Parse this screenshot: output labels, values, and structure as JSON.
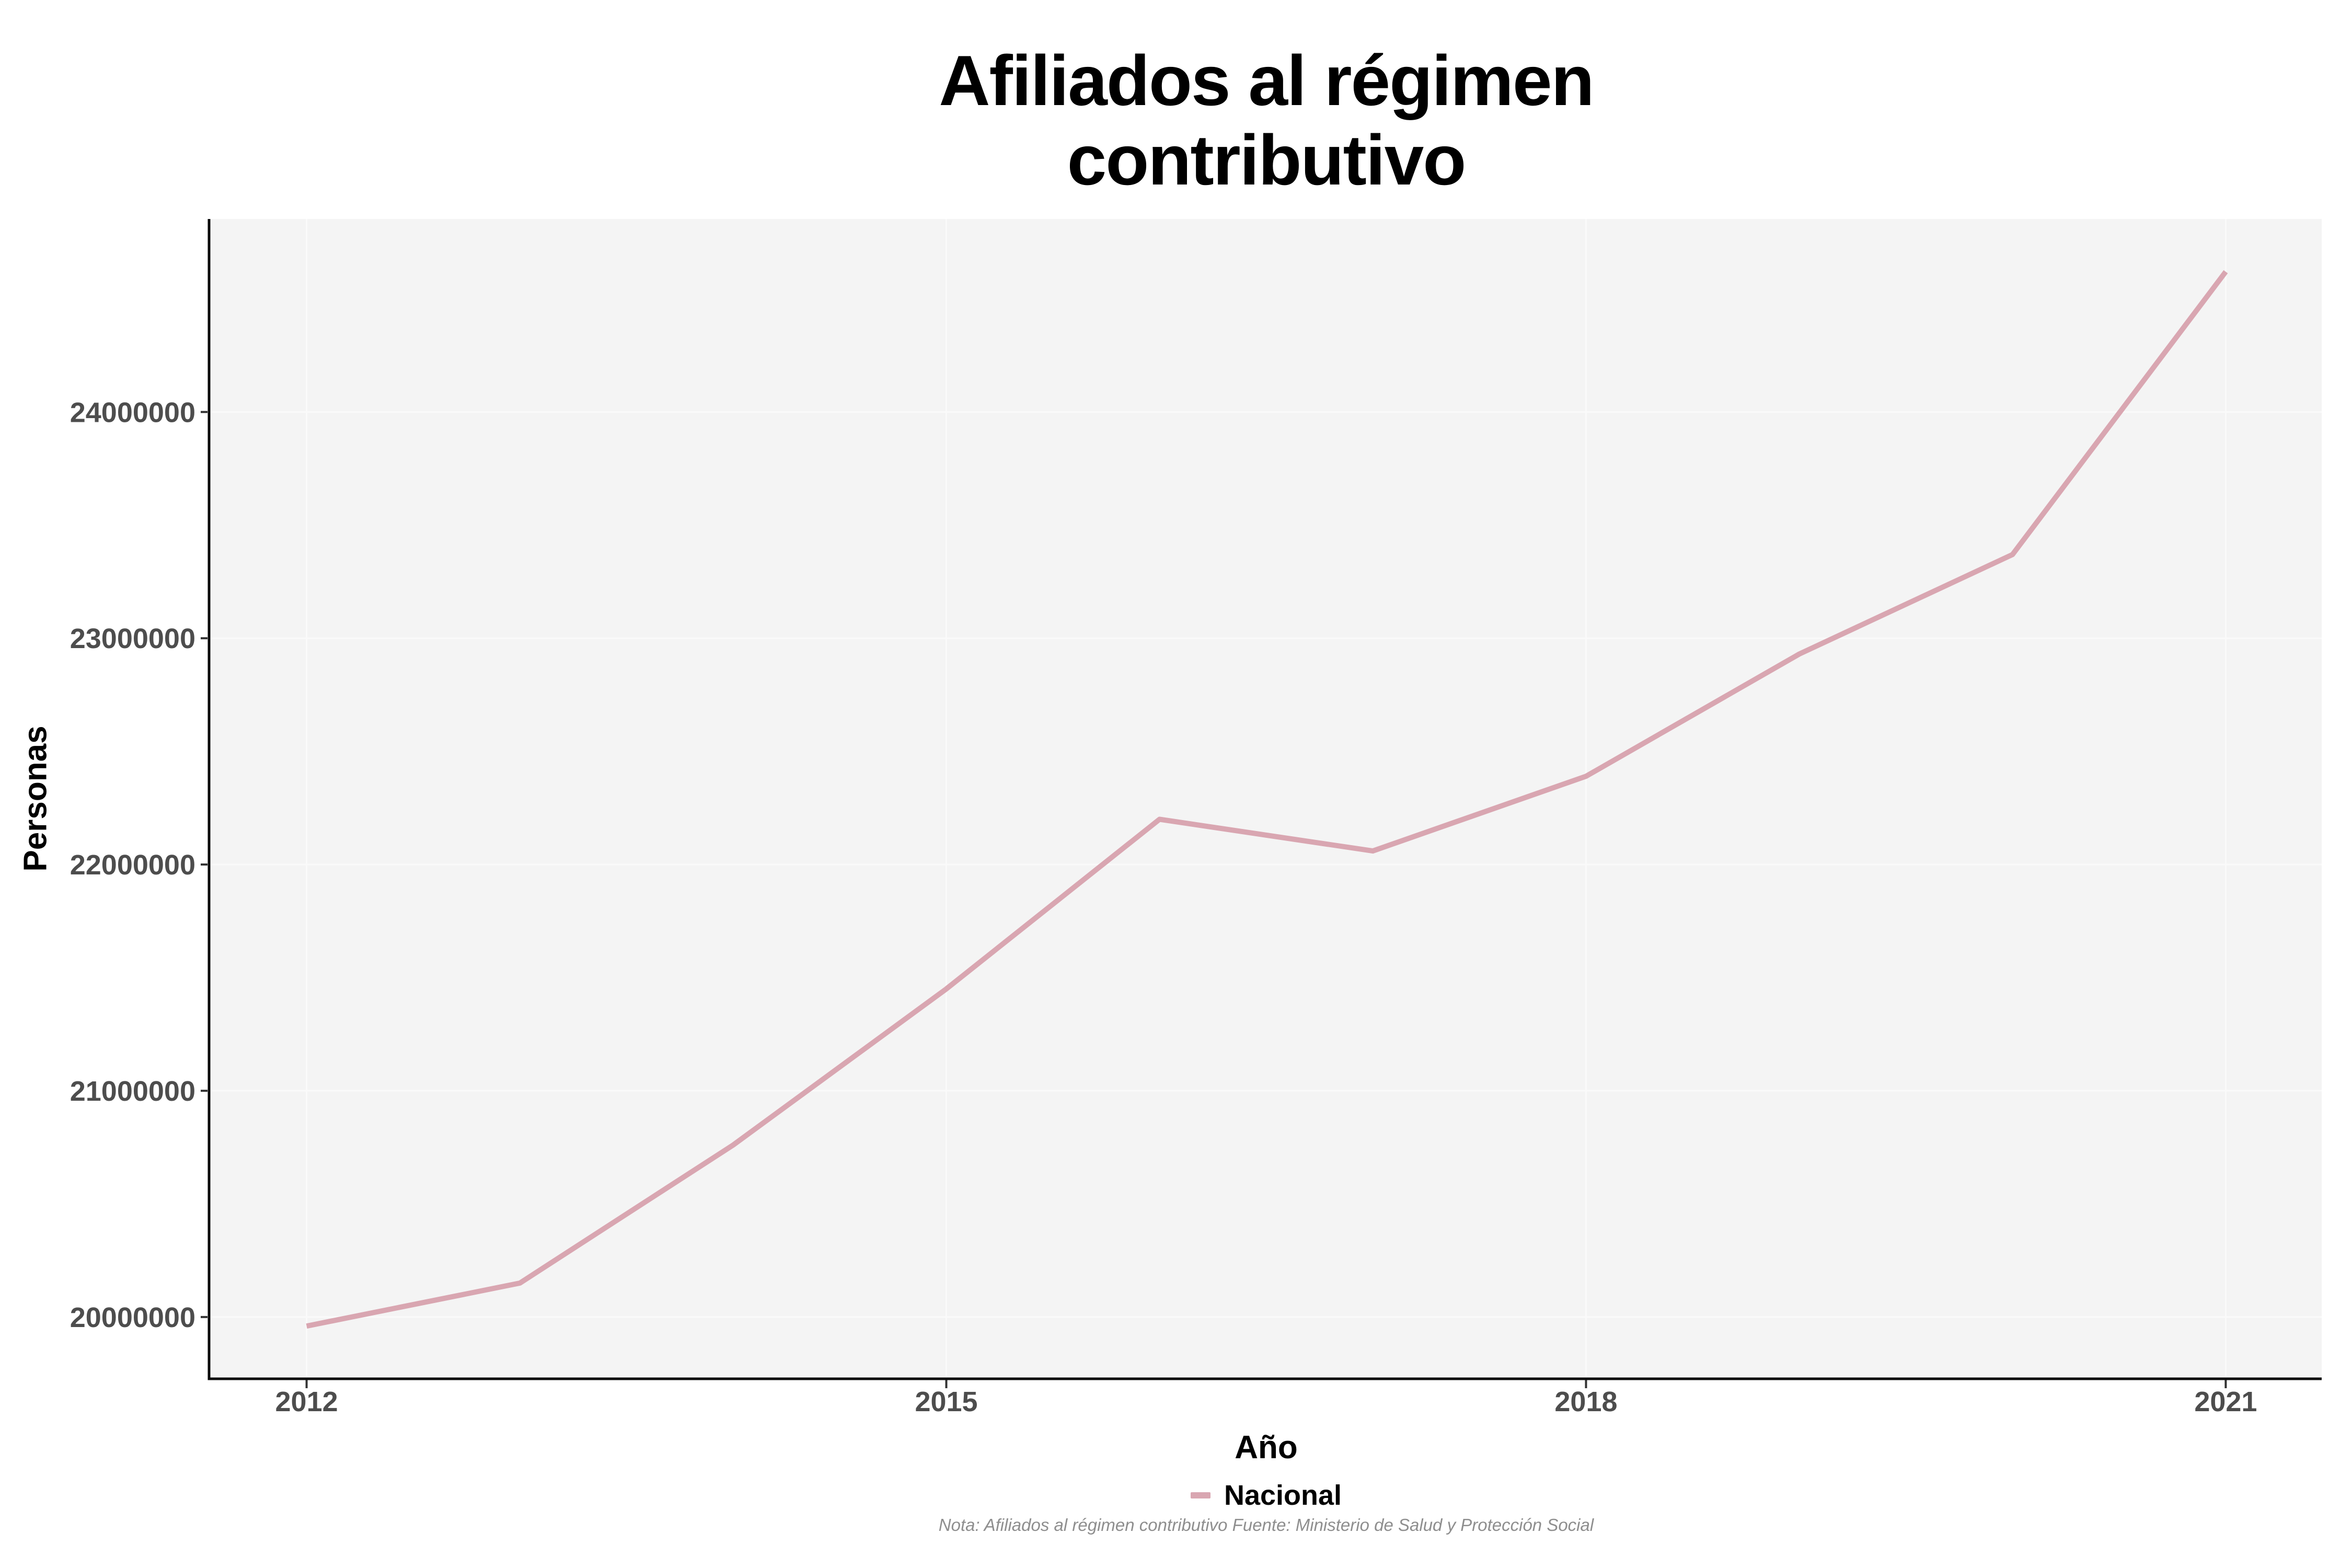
{
  "chart_data": {
    "type": "line",
    "title": "Afiliados al régimen contributivo",
    "title_lines": [
      "Afiliados al régimen",
      "contributivo"
    ],
    "xlabel": "Año",
    "ylabel": "Personas",
    "caption": "Nota: Afiliados al régimen contributivo Fuente: Ministerio de Salud y Protección Social",
    "legend_position": "bottom",
    "grid": "major",
    "x": [
      2012,
      2013,
      2014,
      2015,
      2016,
      2017,
      2018,
      2019,
      2020,
      2021
    ],
    "series": [
      {
        "name": "Nacional",
        "values": [
          19960000,
          20150000,
          20760000,
          21450000,
          22200000,
          22060000,
          22390000,
          22930000,
          23370000,
          24620000
        ]
      }
    ],
    "xticks": [
      2012,
      2015,
      2018,
      2021
    ],
    "yticks": [
      20000000,
      21000000,
      22000000,
      23000000,
      24000000
    ],
    "xlim": [
      2011.55,
      2021.45
    ],
    "ylim": [
      19727000,
      24853000
    ],
    "colors": {
      "line": "#d9a6b1",
      "panel_bg": "#f4f4f4",
      "grid": "#fafafa",
      "axis_line": "#0a0a0a",
      "tick_mark": "#333333",
      "tick_label": "#4d4d4d",
      "title": "#000000",
      "caption": "#8e8e8e"
    }
  }
}
